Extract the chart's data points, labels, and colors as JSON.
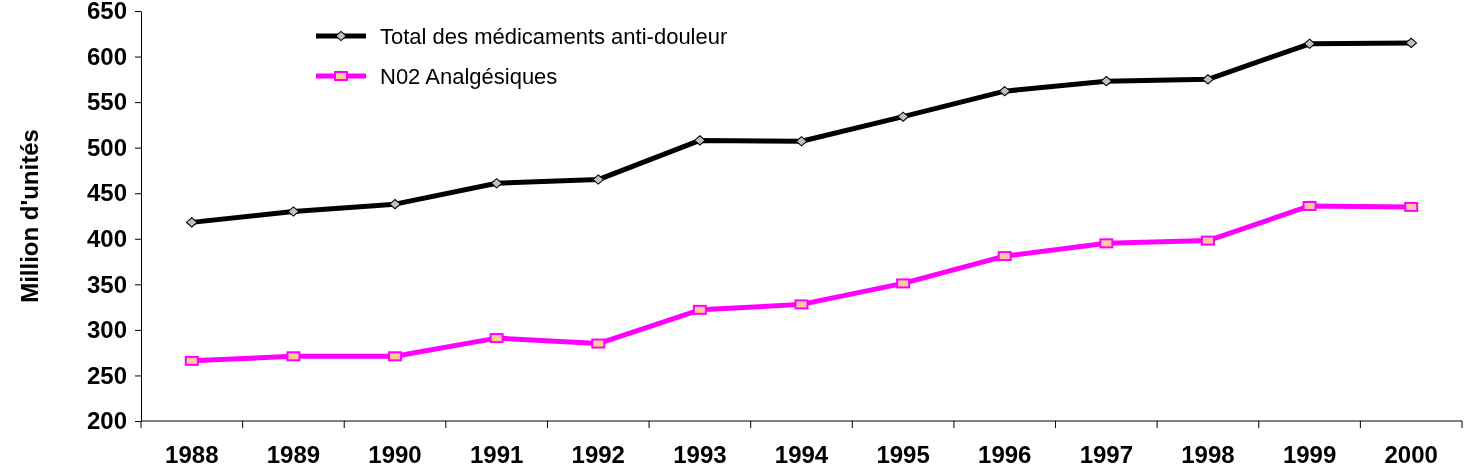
{
  "chart_data": {
    "type": "line",
    "ylabel": "Million d'unités",
    "categories": [
      "1988",
      "1989",
      "1990",
      "1991",
      "1992",
      "1993",
      "1994",
      "1995",
      "1996",
      "1997",
      "1998",
      "1999",
      "2000"
    ],
    "series": [
      {
        "name": "Total des médicaments anti-douleur",
        "color": "#000000",
        "marker": "diamond",
        "values": [
          418,
          430,
          438,
          461,
          465,
          508,
          507,
          534,
          562,
          573,
          575,
          614,
          615
        ]
      },
      {
        "name": "N02 Analgésiques",
        "color": "#ff00ff",
        "marker": "square",
        "values": [
          266,
          271,
          271,
          291,
          285,
          322,
          328,
          351,
          381,
          395,
          398,
          436,
          435
        ]
      }
    ],
    "ylim": [
      200,
      650
    ],
    "yticks": [
      200,
      250,
      300,
      350,
      400,
      450,
      500,
      550,
      600,
      650
    ],
    "grid": false,
    "legend": "top",
    "line_style": "solid"
  }
}
